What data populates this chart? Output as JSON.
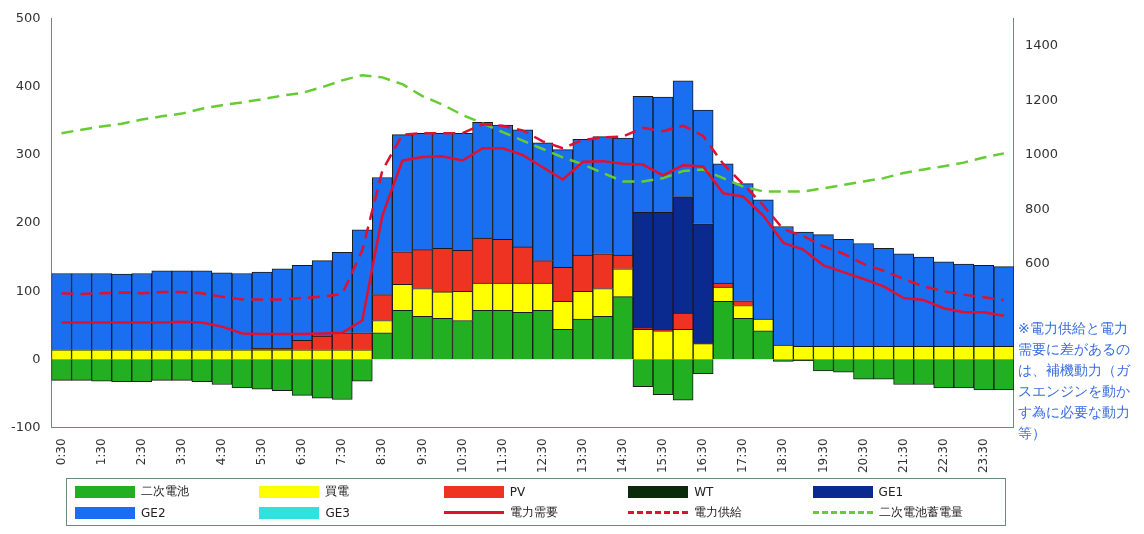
{
  "chart_data": {
    "type": "bar",
    "stacked": true,
    "legend": "bottom",
    "grid": false,
    "marker": "none",
    "categories": [
      "0:30",
      null,
      "1:30",
      null,
      "2:30",
      null,
      "3:30",
      null,
      "4:30",
      null,
      "5:30",
      null,
      "6:30",
      null,
      "7:30",
      null,
      "8:30",
      null,
      "9:30",
      null,
      "10:30",
      null,
      "11:30",
      null,
      "12:30",
      null,
      "13:30",
      null,
      "14:30",
      null,
      "15:30",
      null,
      "16:30",
      null,
      "17:30",
      null,
      "18:30",
      null,
      "19:30",
      null,
      "20:30",
      null,
      "21:30",
      null,
      "22:30",
      null,
      "23:30",
      null
    ],
    "ylim": [
      -100,
      500
    ],
    "yticks": [
      -100,
      0,
      100,
      200,
      300,
      400,
      500
    ],
    "y2lim": [
      0,
      1500
    ],
    "y2ticks": [
      600,
      800,
      1000,
      1200,
      1400
    ],
    "series": [
      {
        "name": "二次電池",
        "color": "#22b022",
        "values": [
          -31,
          -31,
          -32,
          -33,
          -33,
          -31,
          -31,
          -33,
          -37,
          -42,
          -44,
          -46,
          -53,
          -57,
          -59,
          -32,
          39,
          72,
          63,
          60,
          57,
          72,
          72,
          69,
          72,
          44,
          59,
          63,
          92,
          -40,
          -52,
          -60,
          -21,
          85,
          60,
          42,
          -3,
          -2,
          -17,
          -19,
          -29,
          -29,
          -37,
          -37,
          -42,
          -42,
          -45,
          -45
        ]
      },
      {
        "name": "買電",
        "color": "#ffff00",
        "values": [
          14,
          14,
          14,
          14,
          14,
          14,
          14,
          14,
          14,
          14,
          14,
          14,
          14,
          14,
          14,
          14,
          18,
          38,
          41,
          39,
          43,
          40,
          40,
          43,
          40,
          41,
          41,
          41,
          41,
          44,
          42,
          44,
          23,
          21,
          19,
          17,
          21,
          19,
          19,
          19,
          19,
          19,
          19,
          19,
          19,
          19,
          19,
          19
        ]
      },
      {
        "name": "PV",
        "color": "#ee3322",
        "values": [
          0,
          0,
          0,
          0,
          0,
          0,
          0,
          0,
          0,
          0,
          2,
          2,
          14,
          20,
          25,
          25,
          38,
          48,
          57,
          64,
          60,
          66,
          64,
          53,
          33,
          50,
          53,
          51,
          20,
          2,
          1,
          24,
          0,
          6,
          7,
          0,
          0,
          0,
          0,
          0,
          0,
          0,
          0,
          0,
          0,
          0,
          0,
          0
        ]
      },
      {
        "name": "WT",
        "color": "#0a2a0a",
        "values": [
          0,
          0,
          0,
          0,
          0,
          0,
          0,
          0,
          0,
          0,
          0,
          0,
          0,
          0,
          0,
          0,
          0,
          0,
          0,
          0,
          0,
          0,
          0,
          0,
          0,
          0,
          0,
          0,
          0,
          0,
          0,
          0,
          0,
          0,
          0,
          0,
          0,
          0,
          0,
          0,
          0,
          0,
          0,
          0,
          0,
          0,
          0,
          0
        ]
      },
      {
        "name": "GE1",
        "color": "#0a2a90",
        "values": [
          0,
          0,
          0,
          0,
          0,
          0,
          0,
          0,
          0,
          0,
          0,
          0,
          0,
          0,
          0,
          0,
          0,
          0,
          0,
          0,
          0,
          0,
          0,
          0,
          0,
          0,
          0,
          0,
          0,
          170,
          173,
          171,
          176,
          0,
          0,
          0,
          0,
          0,
          0,
          0,
          0,
          0,
          0,
          0,
          0,
          0,
          0,
          0
        ]
      },
      {
        "name": "GE2",
        "color": "#1a6ef0",
        "values": [
          112,
          112,
          112,
          111,
          112,
          116,
          116,
          116,
          113,
          112,
          112,
          117,
          110,
          111,
          118,
          151,
          172,
          172,
          171,
          169,
          172,
          170,
          168,
          172,
          173,
          173,
          170,
          172,
          172,
          170,
          169,
          170,
          167,
          175,
          172,
          175,
          174,
          168,
          164,
          157,
          151,
          144,
          136,
          131,
          124,
          121,
          119,
          117
        ]
      },
      {
        "name": "GE3",
        "color": "#33e0e0",
        "values": [
          0,
          0,
          0,
          0,
          0,
          0,
          0,
          0,
          0,
          0,
          0,
          0,
          0,
          0,
          0,
          0,
          0,
          0,
          0,
          0,
          0,
          0,
          0,
          0,
          0,
          0,
          0,
          0,
          0,
          0,
          0,
          0,
          0,
          0,
          0,
          0,
          0,
          0,
          0,
          0,
          0,
          0,
          0,
          0,
          0,
          0,
          0,
          0
        ]
      },
      {
        "name": "電力需要",
        "type": "line",
        "color": "#e01030",
        "line_style": "solid",
        "values": [
          54,
          54,
          54,
          54,
          54,
          54,
          55,
          54,
          48,
          38,
          37,
          37,
          37,
          38,
          39,
          57,
          211,
          292,
          297,
          298,
          292,
          310,
          310,
          300,
          282,
          264,
          290,
          291,
          287,
          286,
          270,
          285,
          283,
          244,
          239,
          211,
          171,
          161,
          138,
          128,
          118,
          107,
          90,
          87,
          75,
          69,
          69,
          64
        ]
      },
      {
        "name": "電力供給",
        "type": "line",
        "color": "#e01030",
        "line_style": "dashed",
        "values": [
          97,
          96,
          97,
          98,
          97,
          99,
          99,
          97,
          92,
          88,
          88,
          88,
          90,
          92,
          96,
          160,
          277,
          330,
          332,
          332,
          332,
          345,
          343,
          336,
          320,
          310,
          322,
          326,
          327,
          340,
          335,
          343,
          328,
          287,
          257,
          226,
          191,
          181,
          166,
          155,
          140,
          130,
          118,
          107,
          100,
          95,
          91,
          87
        ]
      },
      {
        "name": "二次電池蓄電量",
        "type": "line",
        "axis": "y2",
        "color": "#66cc33",
        "line_style": "dashed",
        "values": [
          1080,
          1093,
          1105,
          1115,
          1130,
          1142,
          1152,
          1170,
          1183,
          1193,
          1205,
          1218,
          1228,
          1249,
          1274,
          1293,
          1285,
          1260,
          1216,
          1185,
          1147,
          1116,
          1084,
          1053,
          1022,
          991,
          966,
          934,
          903,
          903,
          915,
          941,
          947,
          915,
          884,
          866,
          866,
          866,
          878,
          890,
          903,
          915,
          934,
          947,
          959,
          972,
          991,
          1006
        ]
      }
    ],
    "annotations": [
      "※電力供給と電力需要に差があるのは、補機動力（ガスエンジンを動かす為に必要な動力等）"
    ]
  }
}
